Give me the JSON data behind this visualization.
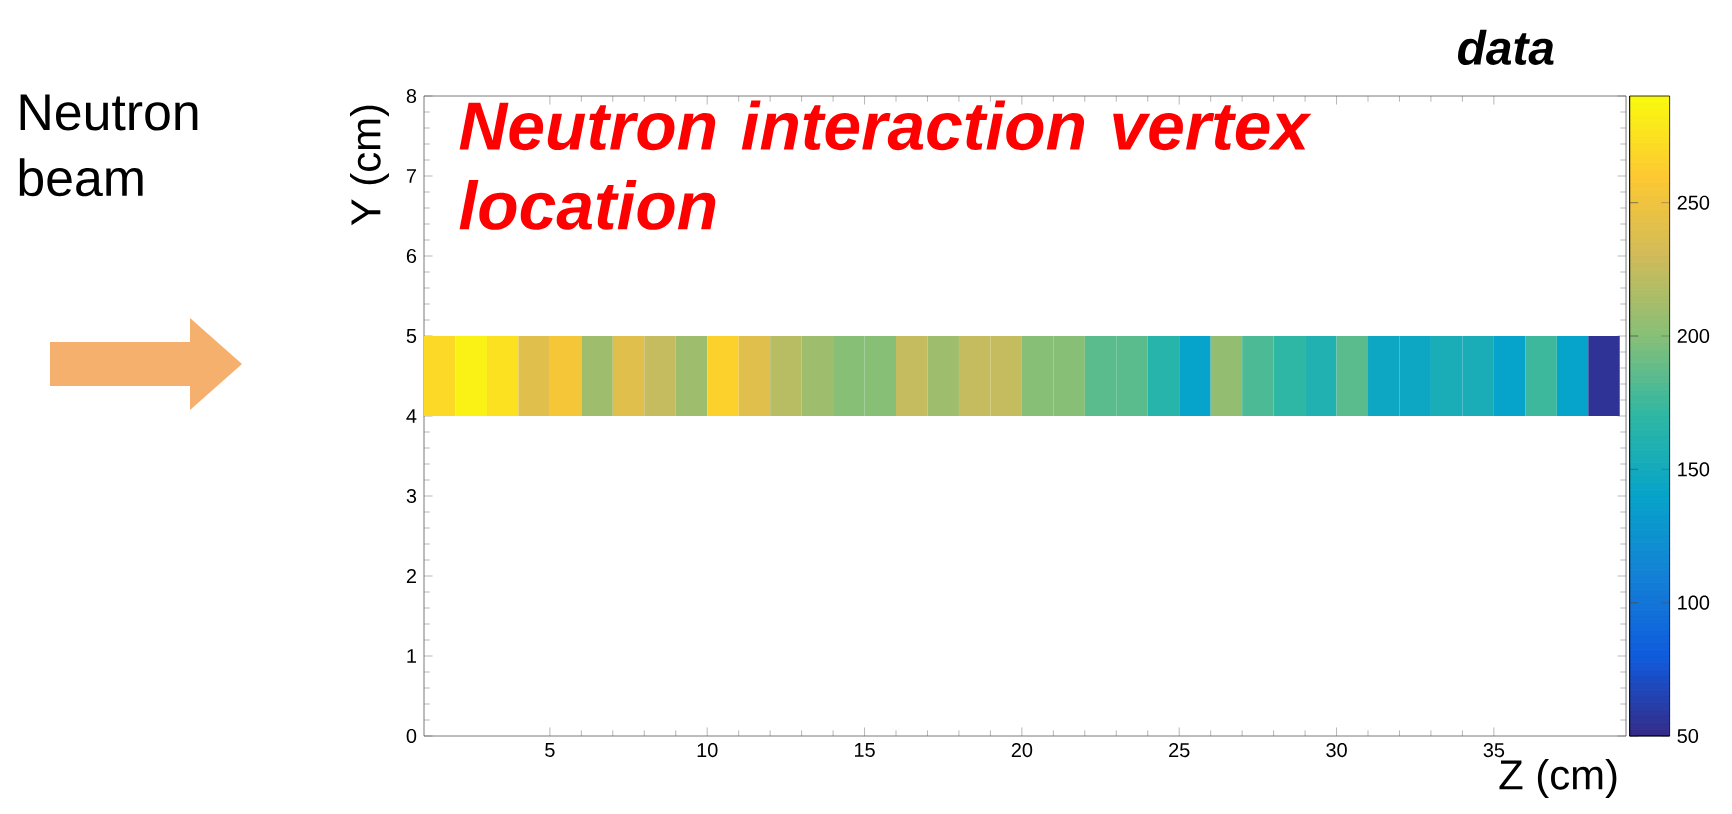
{
  "chart_data": {
    "type": "scatter",
    "title": "data",
    "xlabel": "Z (cm)",
    "ylabel": "Y (cm)",
    "annotations": [
      "Neutron beam",
      "Neutron interaction vertex location"
    ],
    "x": [
      1.5,
      2.5,
      3.5,
      4.5,
      5.5,
      6.5,
      7.5,
      8.5,
      9.5,
      10.5,
      11.5,
      12.5,
      13.5,
      14.5,
      15.5,
      16.5,
      17.5,
      18.5,
      19.5,
      20.5,
      21.5,
      22.5,
      23.5,
      24.5,
      25.5,
      26.5,
      27.5,
      28.5,
      29.5,
      30.5,
      31.5,
      32.5,
      33.5,
      34.5,
      35.5,
      36.5,
      37.5,
      38.5
    ],
    "values": [
      4.5,
      4.5,
      4.5,
      4.5,
      4.5,
      4.5,
      4.5,
      4.5,
      4.5,
      4.5,
      4.5,
      4.5,
      4.5,
      4.5,
      4.5,
      4.5,
      4.5,
      4.5,
      4.5,
      4.5,
      4.5,
      4.5,
      4.5,
      4.5,
      4.5,
      4.5,
      4.5,
      4.5,
      4.5,
      4.5,
      4.5,
      4.5,
      4.5,
      4.5,
      4.5,
      4.5,
      4.5,
      4.5
    ],
    "cvalues": [
      270,
      285,
      275,
      240,
      255,
      210,
      240,
      225,
      210,
      265,
      240,
      220,
      210,
      200,
      200,
      225,
      210,
      225,
      225,
      200,
      200,
      185,
      185,
      165,
      140,
      205,
      180,
      170,
      160,
      185,
      145,
      145,
      155,
      155,
      140,
      175,
      140,
      55
    ],
    "marker": "square",
    "xlim": [
      1,
      39.2
    ],
    "ylim": [
      0,
      8
    ],
    "xticks": [
      5,
      10,
      15,
      20,
      25,
      30,
      35
    ],
    "yticks": [
      0,
      1,
      2,
      3,
      4,
      5,
      6,
      7,
      8
    ],
    "clim": [
      50,
      290
    ],
    "cticks": [
      50,
      100,
      150,
      200,
      250
    ]
  }
}
